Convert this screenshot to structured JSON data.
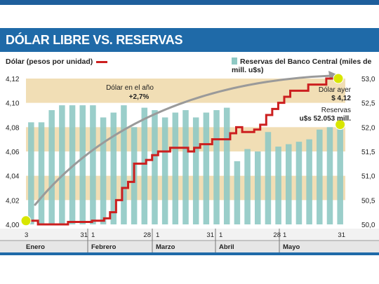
{
  "header": {
    "title": "DÓLAR LIBRE VS. RESERVAS"
  },
  "legend": {
    "left_label": "Dólar (pesos por unidad)",
    "right_label": "Reservas del Banco Central (miles de mill. u$s)"
  },
  "colors": {
    "header_bg": "#1f6aa8",
    "dollar_line": "#cc1f1f",
    "reserve_bars": "#8fc9c4",
    "bands": "#f1deb5",
    "arrow": "#9a9a9a",
    "dot": "#d8e600"
  },
  "chart_data": {
    "type": "line",
    "left_axis": {
      "label": "Dólar (pesos por unidad)",
      "ticks": [
        "4,00",
        "4,02",
        "4,04",
        "4,06",
        "4,08",
        "4,10",
        "4,12"
      ],
      "range": [
        4.0,
        4.12
      ]
    },
    "right_axis": {
      "label": "Reservas del Banco Central (miles de mill. u$s)",
      "ticks": [
        "50,0",
        "50,5",
        "51,0",
        "51,5",
        "52,0",
        "52,5",
        "53,0"
      ],
      "range": [
        50.0,
        53.0
      ]
    },
    "months": [
      {
        "name": "Enero",
        "start_tick": "3",
        "end_tick": "31"
      },
      {
        "name": "Febrero",
        "start_tick": "1",
        "end_tick": "28"
      },
      {
        "name": "Marzo",
        "start_tick": "1",
        "end_tick": "31"
      },
      {
        "name": "Abril",
        "start_tick": "1",
        "end_tick": "28"
      },
      {
        "name": "Mayo",
        "start_tick": "1",
        "end_tick": "31"
      }
    ],
    "series": [
      {
        "name": "Dólar (pesos por unidad)",
        "axis": "left",
        "values": [
          4.003,
          4.003,
          4.0,
          4.0,
          4.0,
          4.0,
          4.0,
          4.002,
          4.002,
          4.002,
          4.002,
          4.003,
          4.003,
          4.005,
          4.01,
          4.02,
          4.03,
          4.035,
          4.05,
          4.05,
          4.053,
          4.057,
          4.06,
          4.06,
          4.063,
          4.063,
          4.063,
          4.06,
          4.063,
          4.066,
          4.066,
          4.07,
          4.07,
          4.07,
          4.075,
          4.08,
          4.076,
          4.076,
          4.078,
          4.082,
          4.09,
          4.095,
          4.1,
          4.105,
          4.11,
          4.11,
          4.11,
          4.115,
          4.115,
          4.115,
          4.12,
          4.12,
          4.12
        ]
      },
      {
        "name": "Reservas del Banco Central (miles de mill. u$s)",
        "axis": "right",
        "values": [
          52.1,
          52.1,
          52.35,
          52.45,
          52.45,
          52.45,
          52.45,
          52.2,
          52.3,
          52.45,
          52.0,
          52.4,
          52.35,
          52.2,
          52.3,
          52.35,
          52.2,
          52.3,
          52.35,
          52.4,
          51.3,
          51.55,
          51.5,
          51.9,
          51.6,
          51.65,
          51.7,
          51.75,
          51.95,
          52.0,
          52.053
        ]
      }
    ],
    "annotations": [
      {
        "text_line1": "Dólar en el año",
        "text_line2": "+2,7%"
      },
      {
        "text_line1": "Dólar ayer",
        "text_line2": "$ 4,12"
      },
      {
        "text_line1": "Reservas",
        "text_line2": "u$s 52.053 mill."
      }
    ]
  }
}
